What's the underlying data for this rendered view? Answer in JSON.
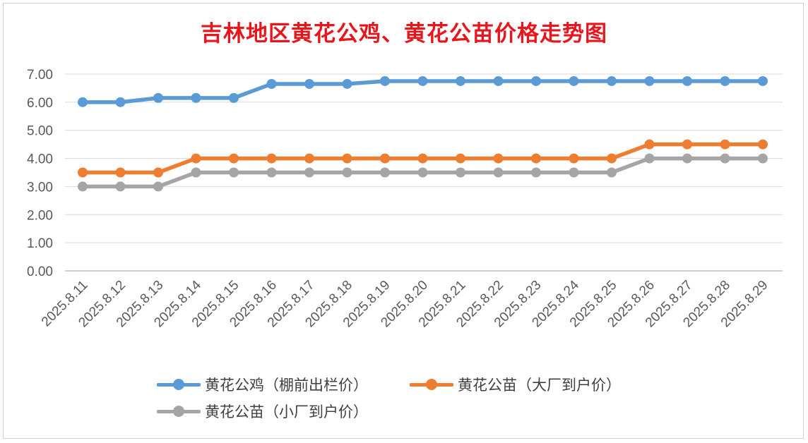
{
  "chart_data": {
    "type": "line",
    "title": "吉林地区黄花公鸡、黄花公苗价格走势图",
    "categories": [
      "2025.8.11",
      "2025.8.12",
      "2025.8.13",
      "2025.8.14",
      "2025.8.15",
      "2025.8.16",
      "2025.8.17",
      "2025.8.18",
      "2025.8.19",
      "2025.8.20",
      "2025.8.21",
      "2025.8.22",
      "2025.8.23",
      "2025.8.24",
      "2025.8.25",
      "2025.8.26",
      "2025.8.27",
      "2025.8.28",
      "2025.8.29"
    ],
    "y_ticks": [
      "0.00",
      "1.00",
      "2.00",
      "3.00",
      "4.00",
      "5.00",
      "6.00",
      "7.00"
    ],
    "ylim": [
      0,
      7
    ],
    "grid": true,
    "legend_position": "bottom",
    "series": [
      {
        "name": "黄花公鸡（棚前出栏价）",
        "color": "#5b9bd5",
        "values": [
          6.0,
          6.0,
          6.15,
          6.15,
          6.15,
          6.65,
          6.65,
          6.65,
          6.75,
          6.75,
          6.75,
          6.75,
          6.75,
          6.75,
          6.75,
          6.75,
          6.75,
          6.75,
          6.75
        ]
      },
      {
        "name": "黄花公苗（大厂到户价）",
        "color": "#ed7d31",
        "values": [
          3.5,
          3.5,
          3.5,
          4.0,
          4.0,
          4.0,
          4.0,
          4.0,
          4.0,
          4.0,
          4.0,
          4.0,
          4.0,
          4.0,
          4.0,
          4.5,
          4.5,
          4.5,
          4.5
        ]
      },
      {
        "name": "黄花公苗（小厂到户价）",
        "color": "#a5a5a5",
        "values": [
          3.0,
          3.0,
          3.0,
          3.5,
          3.5,
          3.5,
          3.5,
          3.5,
          3.5,
          3.5,
          3.5,
          3.5,
          3.5,
          3.5,
          3.5,
          4.0,
          4.0,
          4.0,
          4.0
        ]
      }
    ]
  }
}
